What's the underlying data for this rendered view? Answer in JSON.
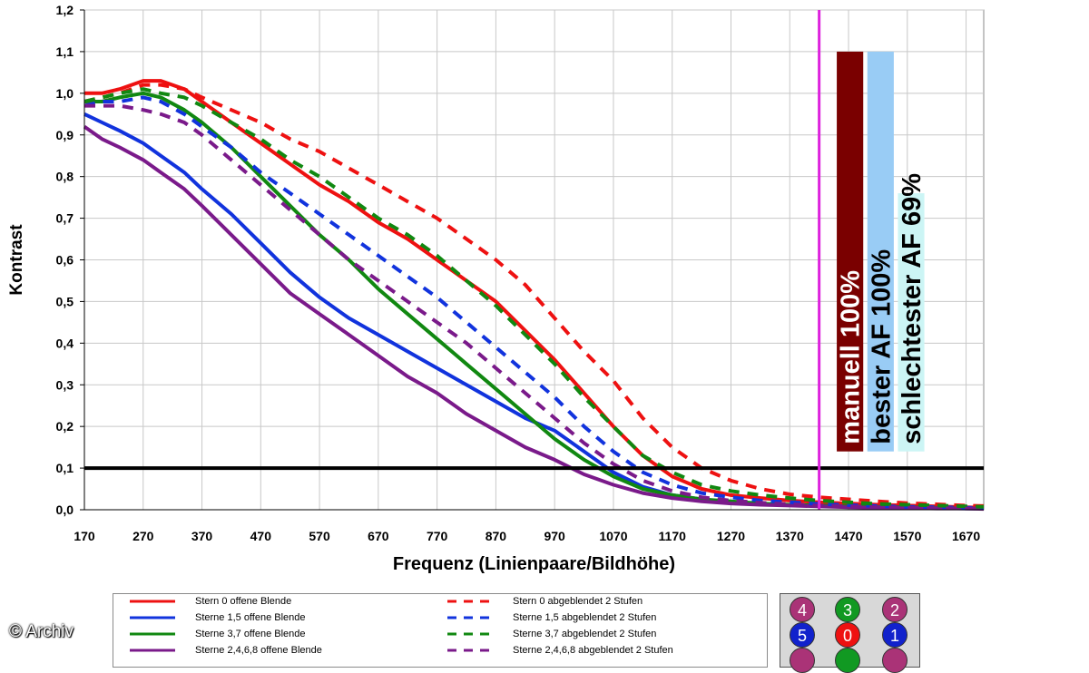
{
  "chart_data": {
    "type": "line",
    "xlabel": "Frequenz (Linienpaare/Bildhöhe)",
    "ylabel": "Kontrast",
    "xlim": [
      170,
      1700
    ],
    "ylim": [
      0,
      1.2
    ],
    "x_ticks": [
      "170",
      "270",
      "370",
      "470",
      "570",
      "670",
      "770",
      "870",
      "970",
      "1070",
      "1170",
      "1270",
      "1370",
      "1470",
      "1570",
      "1670"
    ],
    "y_ticks": [
      "0,0",
      "0,1",
      "0,2",
      "0,3",
      "0,4",
      "0,5",
      "0,6",
      "0,7",
      "0,8",
      "0,9",
      "1,0",
      "1,1",
      "1,2"
    ],
    "grid": true,
    "series": [
      {
        "name": "Stern 0 offene Blende",
        "color": "#ee1111",
        "dash": false,
        "x": [
          170,
          200,
          230,
          270,
          300,
          340,
          370,
          420,
          470,
          520,
          570,
          620,
          670,
          720,
          770,
          820,
          870,
          920,
          970,
          1020,
          1070,
          1120,
          1170,
          1220,
          1270,
          1320,
          1370,
          1420,
          1470,
          1520,
          1570,
          1620,
          1670,
          1700
        ],
        "y": [
          1.0,
          1.0,
          1.01,
          1.03,
          1.03,
          1.01,
          0.98,
          0.93,
          0.88,
          0.83,
          0.78,
          0.74,
          0.69,
          0.65,
          0.6,
          0.55,
          0.5,
          0.43,
          0.36,
          0.28,
          0.2,
          0.13,
          0.08,
          0.05,
          0.035,
          0.028,
          0.022,
          0.018,
          0.015,
          0.012,
          0.01,
          0.008,
          0.006,
          0.005
        ]
      },
      {
        "name": "Sterne 1,5 offene Blende",
        "color": "#1133dd",
        "dash": false,
        "x": [
          170,
          200,
          230,
          270,
          300,
          340,
          370,
          420,
          470,
          520,
          570,
          620,
          670,
          720,
          770,
          820,
          870,
          920,
          970,
          1020,
          1070,
          1120,
          1170,
          1220,
          1270,
          1320,
          1370,
          1420,
          1470,
          1520,
          1570,
          1620,
          1670,
          1700
        ],
        "y": [
          0.95,
          0.93,
          0.91,
          0.88,
          0.85,
          0.81,
          0.77,
          0.71,
          0.64,
          0.57,
          0.51,
          0.46,
          0.42,
          0.38,
          0.34,
          0.3,
          0.26,
          0.22,
          0.19,
          0.14,
          0.09,
          0.055,
          0.035,
          0.025,
          0.018,
          0.014,
          0.011,
          0.009,
          0.007,
          0.006,
          0.005,
          0.004,
          0.003,
          0.003
        ]
      },
      {
        "name": "Sterne 3,7 offene Blende",
        "color": "#118811",
        "dash": false,
        "x": [
          170,
          200,
          230,
          270,
          300,
          340,
          370,
          420,
          470,
          520,
          570,
          620,
          670,
          720,
          770,
          820,
          870,
          920,
          970,
          1020,
          1070,
          1120,
          1170,
          1220,
          1270,
          1320,
          1370,
          1420,
          1470,
          1520,
          1570,
          1620,
          1670,
          1700
        ],
        "y": [
          0.98,
          0.98,
          0.99,
          1.0,
          0.99,
          0.96,
          0.93,
          0.87,
          0.8,
          0.73,
          0.66,
          0.6,
          0.53,
          0.47,
          0.41,
          0.35,
          0.29,
          0.23,
          0.17,
          0.12,
          0.08,
          0.05,
          0.035,
          0.025,
          0.02,
          0.015,
          0.012,
          0.01,
          0.008,
          0.007,
          0.006,
          0.005,
          0.004,
          0.004
        ]
      },
      {
        "name": "Sterne 2,4,6,8 offene Blende",
        "color": "#7a1a8a",
        "dash": false,
        "x": [
          170,
          200,
          230,
          270,
          300,
          340,
          370,
          420,
          470,
          520,
          570,
          620,
          670,
          720,
          770,
          820,
          870,
          920,
          970,
          1020,
          1070,
          1120,
          1170,
          1220,
          1270,
          1320,
          1370,
          1420,
          1470,
          1520,
          1570,
          1620,
          1670,
          1700
        ],
        "y": [
          0.92,
          0.89,
          0.87,
          0.84,
          0.81,
          0.77,
          0.73,
          0.66,
          0.59,
          0.52,
          0.47,
          0.42,
          0.37,
          0.32,
          0.28,
          0.23,
          0.19,
          0.15,
          0.12,
          0.085,
          0.06,
          0.04,
          0.028,
          0.02,
          0.015,
          0.012,
          0.01,
          0.008,
          0.006,
          0.005,
          0.004,
          0.003,
          0.003,
          0.002
        ]
      },
      {
        "name": "Stern 0 abgeblendet 2 Stufen",
        "color": "#ee1111",
        "dash": true,
        "x": [
          170,
          200,
          230,
          270,
          300,
          340,
          370,
          420,
          470,
          520,
          570,
          620,
          670,
          720,
          770,
          820,
          870,
          920,
          970,
          1020,
          1070,
          1120,
          1170,
          1220,
          1270,
          1320,
          1370,
          1420,
          1470,
          1520,
          1570,
          1620,
          1670,
          1700
        ],
        "y": [
          0.98,
          0.99,
          1.0,
          1.02,
          1.02,
          1.01,
          0.99,
          0.96,
          0.93,
          0.89,
          0.86,
          0.82,
          0.78,
          0.74,
          0.7,
          0.65,
          0.6,
          0.54,
          0.46,
          0.38,
          0.31,
          0.22,
          0.15,
          0.1,
          0.07,
          0.05,
          0.037,
          0.03,
          0.025,
          0.02,
          0.016,
          0.013,
          0.01,
          0.009
        ]
      },
      {
        "name": "Sterne 1,5 abgeblendet 2 Stufen",
        "color": "#1133dd",
        "dash": true,
        "x": [
          170,
          200,
          230,
          270,
          300,
          340,
          370,
          420,
          470,
          520,
          570,
          620,
          670,
          720,
          770,
          820,
          870,
          920,
          970,
          1020,
          1070,
          1120,
          1170,
          1220,
          1270,
          1320,
          1370,
          1420,
          1470,
          1520,
          1570,
          1620,
          1670,
          1700
        ],
        "y": [
          0.97,
          0.98,
          0.98,
          0.99,
          0.98,
          0.95,
          0.92,
          0.87,
          0.81,
          0.76,
          0.71,
          0.66,
          0.61,
          0.56,
          0.51,
          0.45,
          0.39,
          0.33,
          0.27,
          0.2,
          0.14,
          0.09,
          0.06,
          0.04,
          0.03,
          0.022,
          0.018,
          0.014,
          0.011,
          0.009,
          0.007,
          0.006,
          0.005,
          0.004
        ]
      },
      {
        "name": "Sterne 3,7 abgeblendet 2 Stufen",
        "color": "#118811",
        "dash": true,
        "x": [
          170,
          200,
          230,
          270,
          300,
          340,
          370,
          420,
          470,
          520,
          570,
          620,
          670,
          720,
          770,
          820,
          870,
          920,
          970,
          1020,
          1070,
          1120,
          1170,
          1220,
          1270,
          1320,
          1370,
          1420,
          1470,
          1520,
          1570,
          1620,
          1670,
          1700
        ],
        "y": [
          0.98,
          0.99,
          1.0,
          1.01,
          1.0,
          0.99,
          0.97,
          0.93,
          0.89,
          0.84,
          0.8,
          0.75,
          0.7,
          0.66,
          0.61,
          0.55,
          0.49,
          0.42,
          0.35,
          0.27,
          0.2,
          0.13,
          0.09,
          0.06,
          0.045,
          0.035,
          0.028,
          0.022,
          0.018,
          0.014,
          0.012,
          0.01,
          0.008,
          0.007
        ]
      },
      {
        "name": "Sterne 2,4,6,8 abgeblendet 2 Stufen",
        "color": "#7a1a8a",
        "dash": true,
        "x": [
          170,
          200,
          230,
          270,
          300,
          340,
          370,
          420,
          470,
          520,
          570,
          620,
          670,
          720,
          770,
          820,
          870,
          920,
          970,
          1020,
          1070,
          1120,
          1170,
          1220,
          1270,
          1320,
          1370,
          1420,
          1470,
          1520,
          1570,
          1620,
          1670,
          1700
        ],
        "y": [
          0.97,
          0.97,
          0.97,
          0.96,
          0.95,
          0.93,
          0.9,
          0.84,
          0.78,
          0.72,
          0.66,
          0.6,
          0.55,
          0.5,
          0.45,
          0.4,
          0.34,
          0.28,
          0.22,
          0.16,
          0.11,
          0.07,
          0.045,
          0.03,
          0.022,
          0.017,
          0.013,
          0.01,
          0.008,
          0.006,
          0.005,
          0.004,
          0.003,
          0.003
        ]
      }
    ],
    "reference_lines": [
      {
        "axis": "y",
        "value": 0.1,
        "color": "#000000"
      },
      {
        "axis": "x",
        "value": 1420,
        "color": "#dd22dd"
      }
    ],
    "bars": [
      {
        "label": "manuell 100%",
        "color": "#7a0000",
        "text_color": "#ffffff",
        "value": 1.1,
        "x_from": 1450,
        "x_to": 1495
      },
      {
        "label": "bester AF 100%",
        "color": "#99ccf5",
        "text_color": "#000000",
        "value": 1.1,
        "x_from": 1502,
        "x_to": 1547
      },
      {
        "label": "schlechtester AF 69%",
        "color": "#ccf5f5",
        "text_color": "#000000",
        "value": 0.76,
        "x_from": 1554,
        "x_to": 1599
      }
    ],
    "legend_position": "bottom"
  },
  "position_dots": [
    {
      "label": "4",
      "color": "#aa3377"
    },
    {
      "label": "3",
      "color": "#119922"
    },
    {
      "label": "2",
      "color": "#aa3377"
    },
    {
      "label": "5",
      "color": "#1122cc"
    },
    {
      "label": "0",
      "color": "#ee1111"
    },
    {
      "label": "1",
      "color": "#1122cc"
    }
  ],
  "credit": "© Archiv"
}
